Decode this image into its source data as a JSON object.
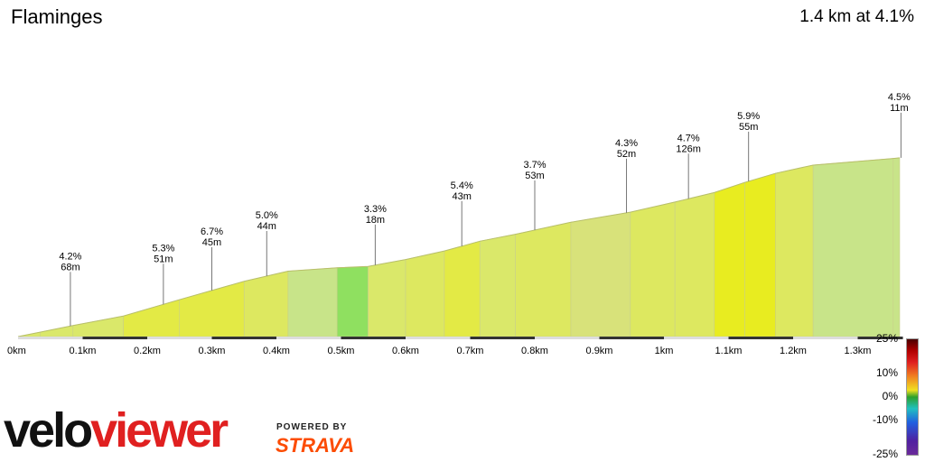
{
  "header": {
    "segment_name": "Flaminges",
    "summary": "1.4 km at 4.1%"
  },
  "chart_data": {
    "type": "area",
    "title": "Flaminges",
    "subtitle": "1.4 km at 4.1%",
    "xlabel": "",
    "ylabel": "",
    "xlim": [
      0,
      1.37
    ],
    "x_ticks": [
      "0km",
      "0.1km",
      "0.2km",
      "0.3km",
      "0.4km",
      "0.5km",
      "0.6km",
      "0.7km",
      "0.8km",
      "0.9km",
      "1km",
      "1.1km",
      "1.2km",
      "1.3km"
    ],
    "x_tick_values": [
      0,
      0.1,
      0.2,
      0.3,
      0.4,
      0.5,
      0.6,
      0.7,
      0.8,
      0.9,
      1.0,
      1.1,
      1.2,
      1.3
    ],
    "elevation_profile": {
      "x": [
        0,
        0.034,
        0.085,
        0.163,
        0.25,
        0.35,
        0.418,
        0.494,
        0.542,
        0.6,
        0.66,
        0.715,
        0.77,
        0.856,
        0.948,
        1.017,
        1.078,
        1.125,
        1.173,
        1.231,
        1.355,
        1.365
      ],
      "elevation_gain_m": [
        0,
        1.4,
        3.5,
        6.5,
        11.7,
        17.5,
        20.7,
        21.8,
        22.2,
        24.4,
        27.1,
        30.2,
        32.4,
        36.2,
        39.4,
        42.6,
        45.6,
        48.8,
        51.7,
        54.3,
        56.4,
        56.6
      ]
    },
    "segments": [
      {
        "grade": "4.2%",
        "length": "68m"
      },
      {
        "grade": "5.3%",
        "length": "51m"
      },
      {
        "grade": "6.7%",
        "length": "45m"
      },
      {
        "grade": "5.0%",
        "length": "44m"
      },
      {
        "grade": "3.3%",
        "length": "18m"
      },
      {
        "grade": "5.4%",
        "length": "43m"
      },
      {
        "grade": "3.7%",
        "length": "53m"
      },
      {
        "grade": "4.3%",
        "length": "52m"
      },
      {
        "grade": "4.7%",
        "length": "126m"
      },
      {
        "grade": "5.9%",
        "length": "55m"
      },
      {
        "grade": "4.5%",
        "length": "11m"
      }
    ],
    "segment_x": [
      0.081,
      0.225,
      0.3,
      0.385,
      0.553,
      0.687,
      0.8,
      0.942,
      1.038,
      1.131,
      1.367
    ],
    "color_scale": {
      "labels": [
        "25%",
        "10%",
        "0%",
        "-10%",
        "-25%"
      ],
      "values": [
        25,
        10,
        0,
        -10,
        -25
      ]
    }
  },
  "branding": {
    "logo_part1": "velo",
    "logo_part2": "viewer",
    "powered_by": "POWERED BY",
    "strava": "STRAVA"
  }
}
